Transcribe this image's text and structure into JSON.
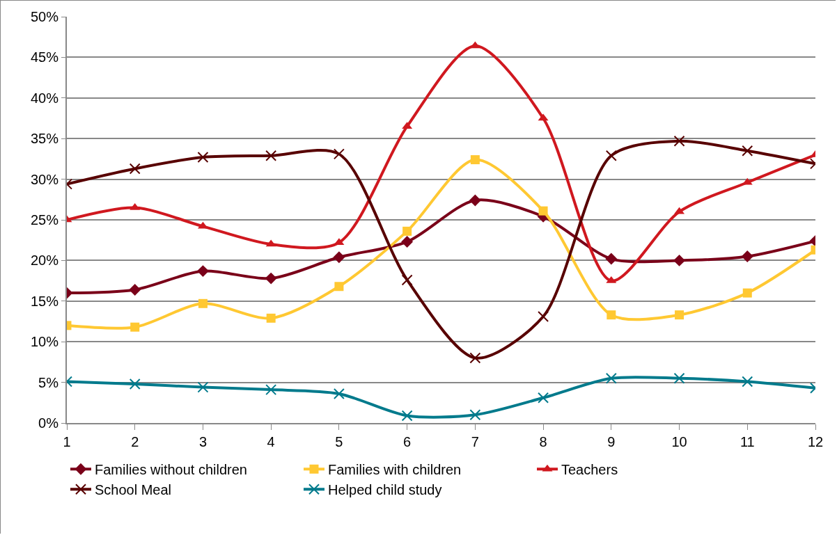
{
  "chart_data": {
    "type": "line",
    "x": [
      1,
      2,
      3,
      4,
      5,
      6,
      7,
      8,
      9,
      10,
      11,
      12
    ],
    "xlim": [
      1,
      12
    ],
    "xticks": [
      1,
      2,
      3,
      4,
      5,
      6,
      7,
      8,
      9,
      10,
      11,
      12
    ],
    "ylim": [
      0,
      50
    ],
    "yticks": [
      {
        "value": 0,
        "label": "0%"
      },
      {
        "value": 5,
        "label": "5%"
      },
      {
        "value": 10,
        "label": "10%"
      },
      {
        "value": 15,
        "label": "15%"
      },
      {
        "value": 20,
        "label": "20%"
      },
      {
        "value": 25,
        "label": "25%"
      },
      {
        "value": 30,
        "label": "30%"
      },
      {
        "value": 35,
        "label": "35%"
      },
      {
        "value": 40,
        "label": "40%"
      },
      {
        "value": 45,
        "label": "45%"
      },
      {
        "value": 50,
        "label": "50%"
      }
    ],
    "grid": "y",
    "legend": "bottom",
    "line_style": "solid",
    "series": [
      {
        "name": "Families without children",
        "color": "#7a0019",
        "marker": "diamond",
        "values": [
          16.0,
          16.4,
          18.7,
          17.8,
          20.4,
          22.3,
          27.4,
          25.4,
          20.2,
          20.0,
          20.5,
          22.4
        ]
      },
      {
        "name": "Families with children",
        "color": "#ffc832",
        "marker": "square",
        "values": [
          12.0,
          11.8,
          14.7,
          12.9,
          16.8,
          23.6,
          32.4,
          26.1,
          13.3,
          13.3,
          16.0,
          21.3
        ]
      },
      {
        "name": "Teachers",
        "color": "#d0181f",
        "marker": "triangle",
        "values": [
          25.0,
          26.5,
          24.2,
          22.0,
          22.2,
          36.5,
          46.4,
          37.5,
          17.5,
          26.0,
          29.6,
          33.0
        ]
      },
      {
        "name": "School Meal",
        "color": "#580000",
        "marker": "cross",
        "values": [
          29.4,
          31.3,
          32.7,
          32.9,
          33.1,
          17.6,
          8.0,
          13.1,
          32.9,
          34.7,
          33.5,
          31.9
        ]
      },
      {
        "name": "Helped child study",
        "color": "#007a8c",
        "marker": "cross",
        "values": [
          5.1,
          4.8,
          4.4,
          4.1,
          3.6,
          0.9,
          1.0,
          3.1,
          5.5,
          5.5,
          5.1,
          4.3
        ]
      }
    ]
  }
}
